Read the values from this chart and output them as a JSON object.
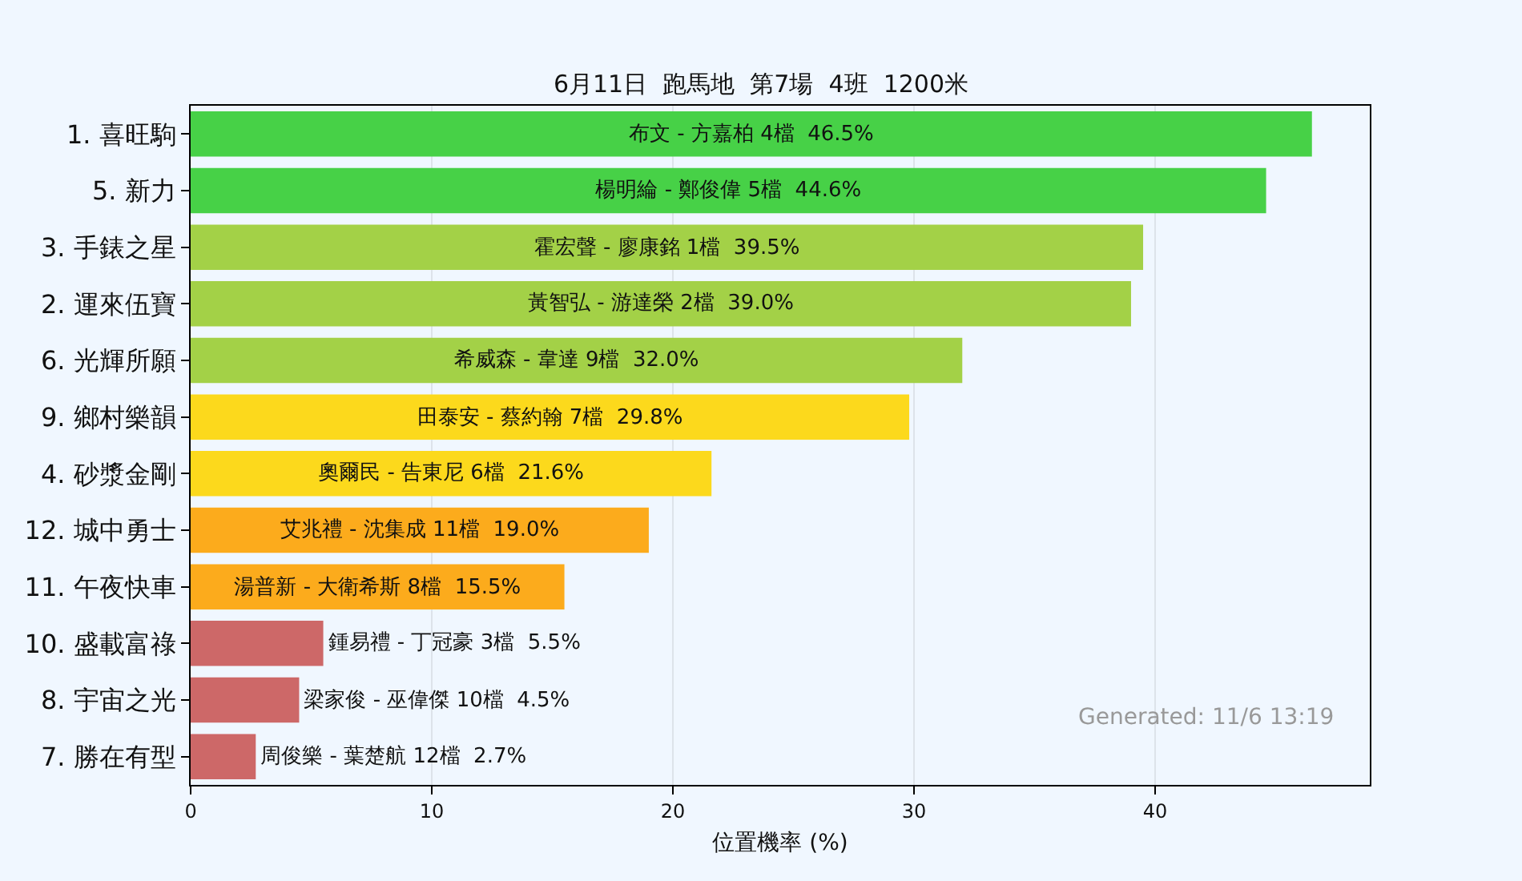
{
  "chart_data": {
    "type": "bar",
    "orientation": "horizontal",
    "title": "6月11日  跑馬地  第7場  4班  1200米",
    "xlabel": "位置機率 (%)",
    "categories": [
      "1. 喜旺駒",
      "5. 新力",
      "3. 手錶之星",
      "2. 運來伍寶",
      "6. 光輝所願",
      "9. 鄉村樂韻",
      "4. 砂漿金剛",
      "12. 城中勇士",
      "11. 午夜快車",
      "10. 盛載富祿",
      "8. 宇宙之光",
      "7. 勝在有型"
    ],
    "values": [
      46.5,
      44.6,
      39.5,
      39.0,
      32.0,
      29.8,
      21.6,
      19.0,
      15.5,
      5.5,
      4.5,
      2.7
    ],
    "value_labels": [
      "布文 - 方嘉柏 4檔  46.5%",
      "楊明綸 - 鄭俊偉 5檔  44.6%",
      "霍宏聲 - 廖康銘 1檔  39.5%",
      "黃智弘 - 游達榮 2檔  39.0%",
      "希威森 - 韋達 9檔  32.0%",
      "田泰安 - 蔡約翰 7檔  29.8%",
      "奧爾民 - 告東尼 6檔  21.6%",
      "艾兆禮 - 沈集成 11檔  19.0%",
      "湯普新 - 大衛希斯 8檔  15.5%",
      "鍾易禮 - 丁冠豪 3檔  5.5%",
      "梁家俊 - 巫偉傑 10檔  4.5%",
      "周俊樂 - 葉楚航 12檔  2.7%"
    ],
    "colors": [
      "#47d147",
      "#47d147",
      "#a3d147",
      "#a3d147",
      "#a3d147",
      "#fcd91c",
      "#fcd91c",
      "#fcab1c",
      "#fcab1c",
      "#cd6868",
      "#cd6868",
      "#cd6868"
    ],
    "xlim": [
      0,
      48.9
    ],
    "xticks": [
      0,
      10,
      20,
      30,
      40
    ],
    "grid": "x",
    "annotations": [
      "Generated: 11/6 13:19"
    ]
  }
}
